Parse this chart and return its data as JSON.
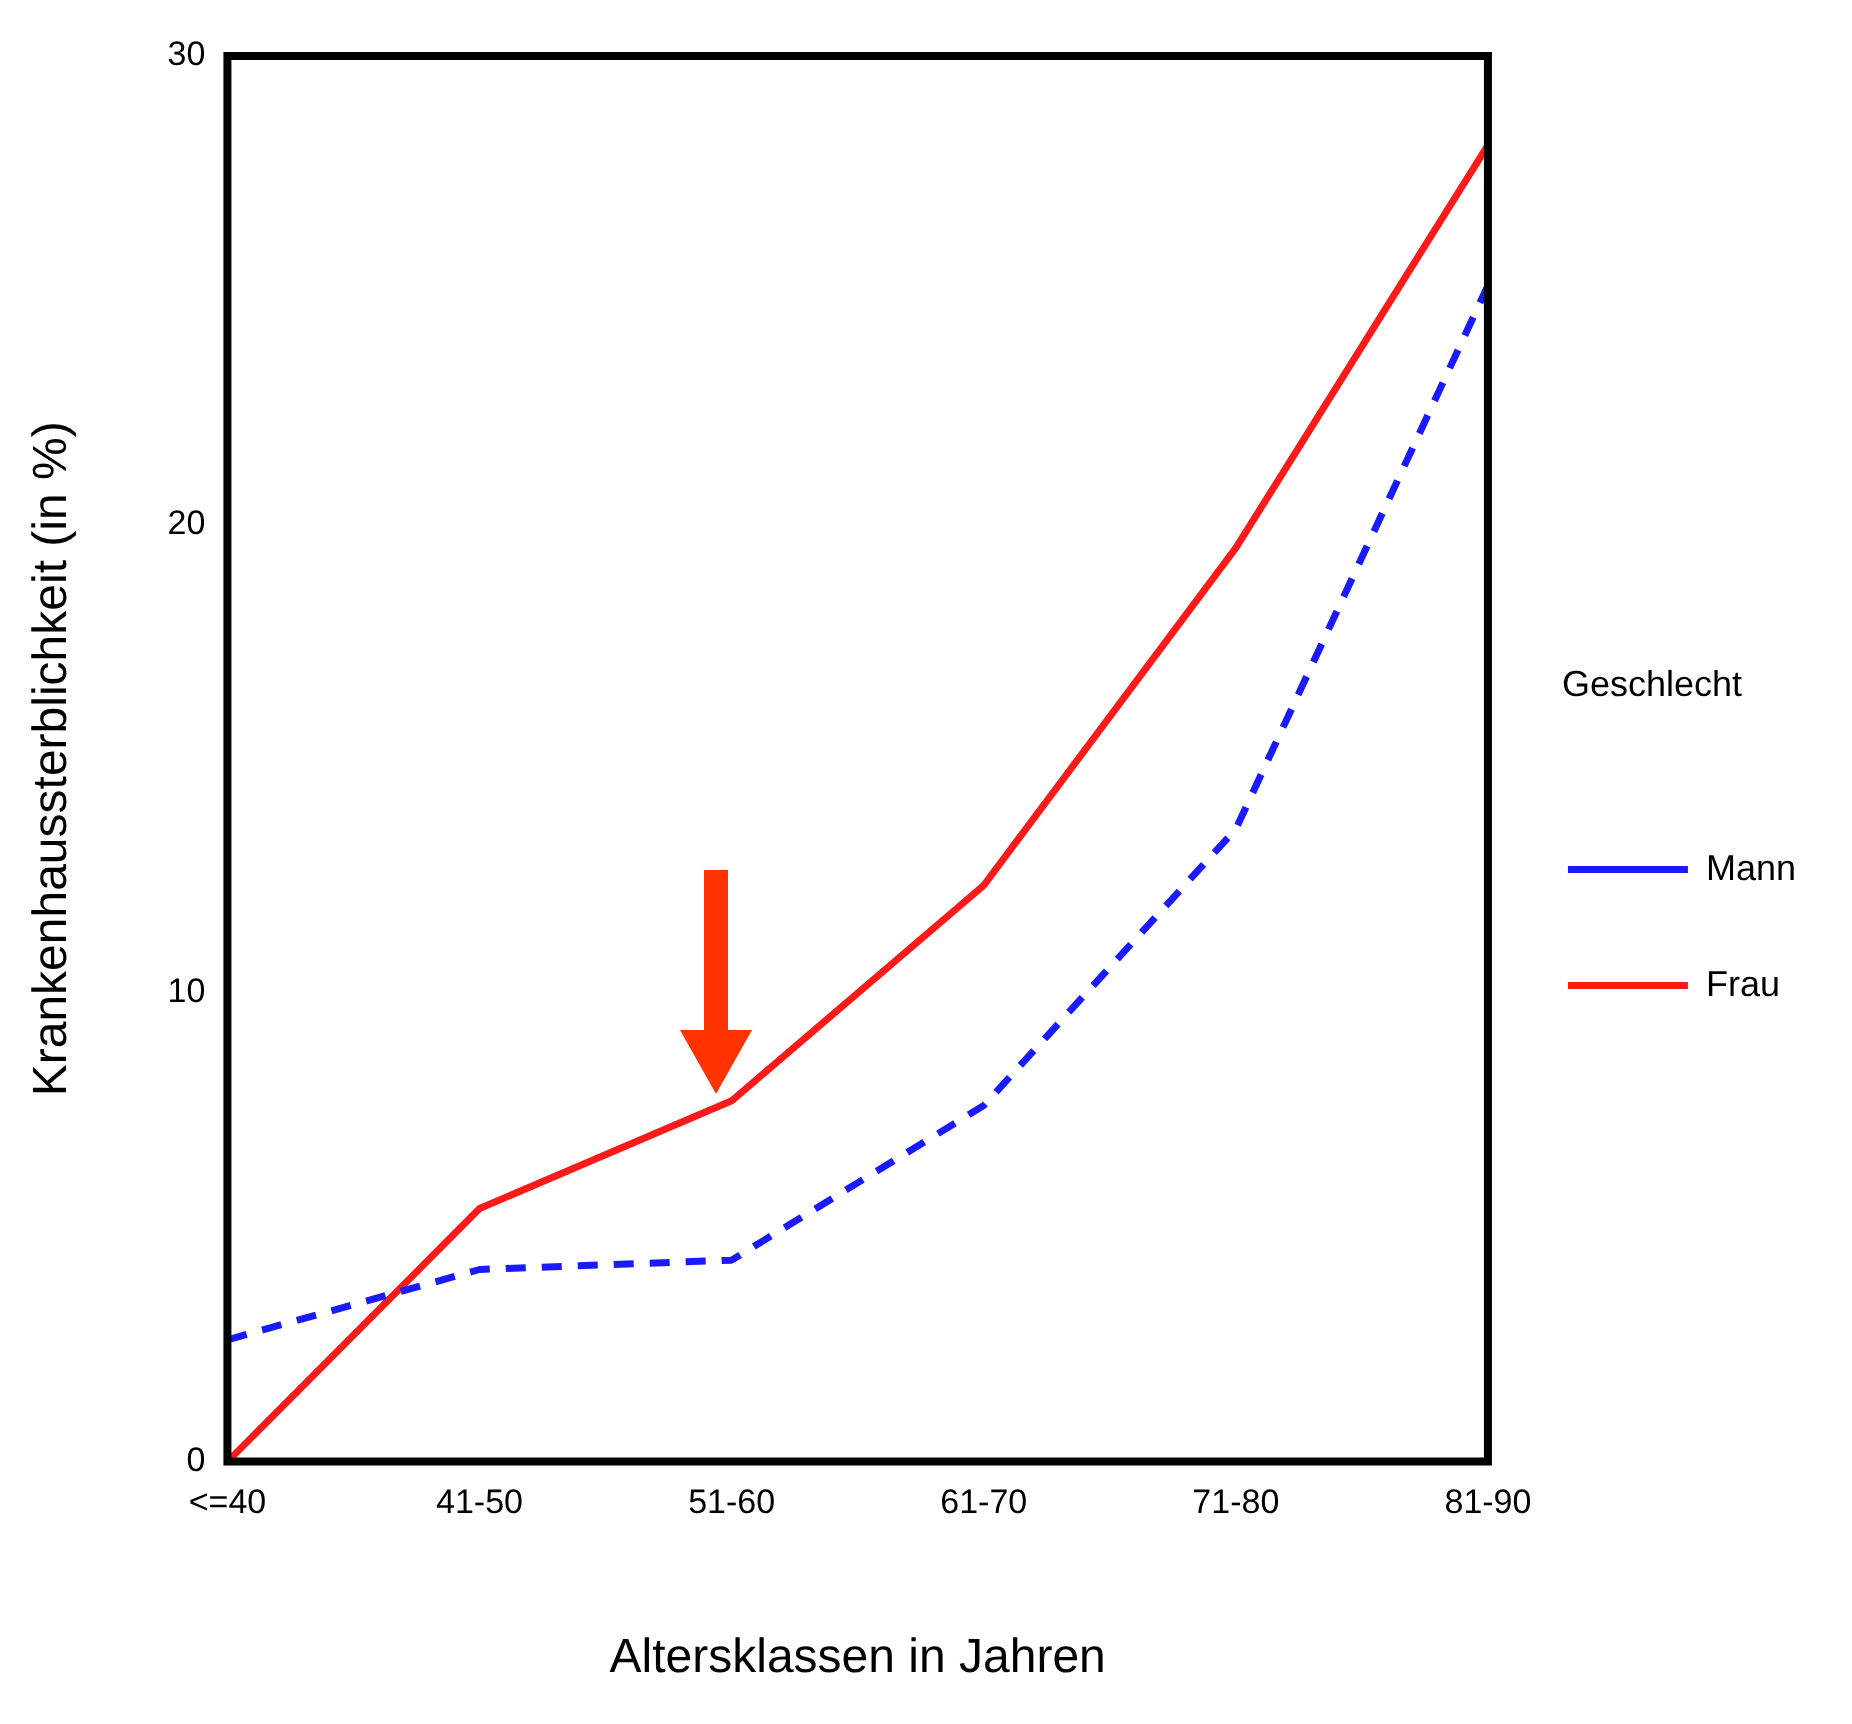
{
  "chart_data": {
    "type": "line",
    "xlabel": "Altersklassen in Jahren",
    "ylabel": "Krankenhaussterblichkeit (in %)",
    "legend_title": "Geschlecht",
    "categories": [
      "<=40",
      "41-50",
      "51-60",
      "61-70",
      "71-80",
      "81-90"
    ],
    "series": [
      {
        "name": "Mann",
        "color": "#1a1aff",
        "line_style": "dashed",
        "values": [
          2.6,
          4.1,
          4.3,
          7.6,
          13.5,
          25.1
        ]
      },
      {
        "name": "Frau",
        "color": "#ff1a1a",
        "line_style": "solid",
        "values": [
          0,
          5.4,
          7.7,
          12.3,
          19.5,
          28.1
        ]
      }
    ],
    "ylim": [
      0,
      30
    ],
    "yticks": [
      0,
      10,
      20,
      30
    ],
    "grid": false,
    "legend": "right",
    "marker": "none"
  }
}
